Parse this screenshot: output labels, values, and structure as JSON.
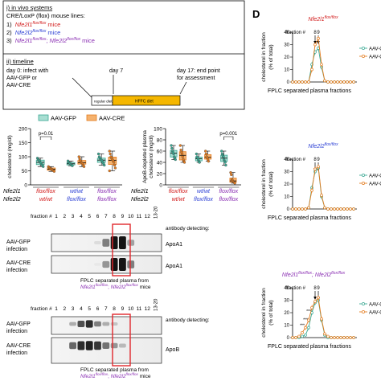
{
  "figure": {
    "panel_d_letter": "D",
    "colors": {
      "gfp": "#3aa893",
      "gfp_fill": "#a8ded2",
      "cre": "#e47c1f",
      "cre_fill": "#f5b26e",
      "mouse_red": "#d21c1c",
      "mouse_blue": "#2b3fd4",
      "mouse_purple": "#8a2fb3",
      "hffc": "#f5b700",
      "box_red": "#e0272c"
    },
    "panel_a": {
      "line1": "i) in vivo systems",
      "line2": "CRE/LoxP (flox) mouse lines:",
      "items": [
        {
          "num": "1)",
          "gene": "Nfe2l1",
          "sup": "flox/flox",
          "suffix": "mice"
        },
        {
          "num": "2)",
          "gene": "Nfe2l2",
          "sup": "flox/flox",
          "suffix": "mice"
        },
        {
          "num": "3)",
          "gene1": "Nfe2l1",
          "sup1": "flox/flox",
          "sep": ";",
          "gene2": "Nfe2l2",
          "sup2": "flox/flox",
          "suffix": "mice"
        }
      ],
      "timeline_title": "ii) timeline",
      "day0": "day 0: infect with",
      "day0b": "AAV-GFP or",
      "day0c": "AAV-CRE",
      "day7": "day 7",
      "day17": "day 17: end point",
      "day17b": "for assessment",
      "regular_diet": "regular diet",
      "hffc_diet": "HFFC diet"
    },
    "panel_b": {
      "legend": [
        {
          "label": "AAV-GFP"
        },
        {
          "label": "AAV-CRE"
        }
      ],
      "left_ylabel": "cholesterol (mg/dl)",
      "left_ticks": [
        "0",
        "50",
        "100",
        "150",
        "200"
      ],
      "left_pval": "p=0.01",
      "right_ylabel1": "ApoB-depleted plasma",
      "right_ylabel2": "cholesterol (mg/dl)",
      "right_ticks": [
        "0",
        "20",
        "40",
        "60",
        "80",
        "100"
      ],
      "right_pval": "p=0.001",
      "row1_label": "Nfe2l1",
      "row2_label": "Nfe2l2",
      "groups": [
        {
          "row1": "flox/flox",
          "row2": "wt/wt"
        },
        {
          "row1": "wt/wt",
          "row2": "flox/flox"
        },
        {
          "row1": "flox/flox",
          "row2": "flox/flox"
        }
      ]
    },
    "panel_c": {
      "fraction_label": "fraction #",
      "fractions": [
        "1",
        "2",
        "3",
        "4",
        "5",
        "6",
        "7",
        "8",
        "9",
        "10",
        "11",
        "12",
        "13-20"
      ],
      "antibody_label": "antibody detecting:",
      "row1_label": "AAV-GFP infection",
      "row2_label": "AAV-CRE infection",
      "apoa1": "ApoA1",
      "apob": "ApoB",
      "caption1": "FPLC separated plasma from",
      "caption_gene1": "Nfe2l1",
      "caption_sup": "flox/flox",
      "caption_gene2": "Nfe2l2",
      "caption_mice": "mice"
    },
    "panel_d": {
      "ylabel1": "cholesterol in fraction",
      "ylabel2": "(% of total)",
      "xlabel": "FPLC separated plasma fractions",
      "fraction_label": "fraction #",
      "f8": "8",
      "f9": "9",
      "legend_gfp": "AAV-GFP",
      "legend_cre": "AAV-CRE",
      "sig": "***",
      "charts": [
        {
          "title_gene": "Nfe2l1",
          "title_sup": "flox/flox",
          "title_gene2": "",
          "title_sup2": ""
        },
        {
          "title_gene": "Nfe2l2",
          "title_sup": "flox/flox",
          "title_gene2": "",
          "title_sup2": ""
        },
        {
          "title_gene": "Nfe2l1",
          "title_sup": "flox/flox",
          "title_gene2": "Nfe2l2",
          "title_sup2": "flox/flox"
        }
      ]
    }
  },
  "chart_data": [
    {
      "type": "box",
      "title": "",
      "ylabel": "cholesterol (mg/dl)",
      "ylim": [
        0,
        200
      ],
      "groups": [
        "Nfe2l1 flox/flox; Nfe2l2 wt/wt",
        "Nfe2l1 wt/wt; Nfe2l2 flox/flox",
        "Nfe2l1 flox/flox; Nfe2l2 flox/flox"
      ],
      "series": [
        {
          "name": "AAV-GFP",
          "points": [
            [
              95,
              90,
              88,
              85,
              80,
              78,
              72,
              70,
              65
            ],
            [
              85,
              80,
              78,
              75,
              72,
              70,
              68
            ],
            [
              110,
              100,
              95,
              90,
              88,
              85,
              80,
              75,
              70
            ]
          ]
        },
        {
          "name": "AAV-CRE",
          "points": [
            [
              65,
              62,
              60,
              58,
              56,
              55,
              52,
              50,
              48
            ],
            [
              100,
              92,
              85,
              80,
              78,
              75,
              70,
              65
            ],
            [
              120,
              110,
              100,
              95,
              90,
              85,
              80,
              70,
              60,
              50
            ]
          ]
        }
      ]
    },
    {
      "type": "box",
      "title": "",
      "ylabel": "ApoB-depleted plasma cholesterol (mg/dl)",
      "ylim": [
        0,
        100
      ],
      "groups": [
        "Nfe2l1 flox/flox; Nfe2l2 wt/wt",
        "Nfe2l1 wt/wt; Nfe2l2 flox/flox",
        "Nfe2l1 flox/flox; Nfe2l2 flox/flox"
      ],
      "series": [
        {
          "name": "AAV-GFP",
          "points": [
            [
              70,
              65,
              60,
              58,
              55,
              50,
              48,
              45
            ],
            [
              55,
              50,
              48,
              45,
              42,
              40
            ],
            [
              60,
              55,
              52,
              50,
              45,
              42,
              40,
              35
            ]
          ]
        },
        {
          "name": "AAV-CRE",
          "points": [
            [
              70,
              62,
              58,
              55,
              50,
              45,
              42,
              40
            ],
            [
              60,
              55,
              50,
              48,
              45,
              42
            ],
            [
              22,
              18,
              10,
              8,
              6,
              5,
              4,
              3
            ]
          ]
        }
      ]
    },
    {
      "type": "line",
      "title": "Nfe2l1 flox/flox",
      "xlabel": "FPLC separated plasma fractions",
      "ylabel": "cholesterol in fraction (% of total)",
      "ylim": [
        0,
        40
      ],
      "x": [
        1,
        2,
        3,
        4,
        5,
        6,
        7,
        8,
        9,
        10,
        11,
        12,
        13,
        14,
        15,
        16,
        17,
        18,
        19,
        20
      ],
      "series": [
        {
          "name": "AAV-GFP",
          "values": [
            0,
            0,
            0,
            0,
            0,
            0,
            14,
            24,
            27,
            12,
            1,
            0,
            0,
            0,
            0,
            0,
            0,
            0,
            0,
            0
          ]
        },
        {
          "name": "AAV-CRE",
          "values": [
            0,
            0,
            0,
            0,
            0,
            0,
            10,
            30,
            35,
            14,
            1,
            0,
            0,
            0,
            0,
            0,
            0,
            0,
            0,
            0
          ]
        }
      ]
    },
    {
      "type": "line",
      "title": "Nfe2l2 flox/flox",
      "xlabel": "FPLC separated plasma fractions",
      "ylabel": "cholesterol in fraction (% of total)",
      "ylim": [
        0,
        40
      ],
      "x": [
        1,
        2,
        3,
        4,
        5,
        6,
        7,
        8,
        9,
        10,
        11,
        12,
        13,
        14,
        15,
        16,
        17,
        18,
        19,
        20
      ],
      "series": [
        {
          "name": "AAV-GFP",
          "values": [
            0,
            0,
            0,
            0,
            0,
            1,
            17,
            30,
            33,
            10,
            1,
            0,
            0,
            0,
            0,
            0,
            0,
            0,
            0,
            0
          ]
        },
        {
          "name": "AAV-CRE",
          "values": [
            0,
            0,
            0,
            0,
            0,
            1,
            15,
            32,
            34,
            11,
            1,
            0,
            0,
            0,
            0,
            0,
            0,
            0,
            0,
            0
          ]
        }
      ]
    },
    {
      "type": "line",
      "title": "Nfe2l1 flox/flox; Nfe2l2 flox/flox",
      "xlabel": "FPLC separated plasma fractions",
      "ylabel": "cholesterol in fraction (% of total)",
      "ylim": [
        0,
        40
      ],
      "x": [
        1,
        2,
        3,
        4,
        5,
        6,
        7,
        8,
        9,
        10,
        11,
        12,
        13,
        14,
        15,
        16,
        17,
        18,
        19,
        20
      ],
      "series": [
        {
          "name": "AAV-GFP",
          "values": [
            0,
            0,
            0,
            1,
            2,
            8,
            20,
            28,
            30,
            14,
            2,
            0,
            0,
            0,
            0,
            0,
            0,
            0,
            0,
            0
          ]
        },
        {
          "name": "AAV-CRE",
          "values": [
            0,
            0,
            1,
            4,
            8,
            14,
            24,
            29,
            32,
            15,
            3,
            1,
            0,
            0,
            0,
            0,
            0,
            0,
            0,
            0
          ]
        }
      ]
    }
  ]
}
